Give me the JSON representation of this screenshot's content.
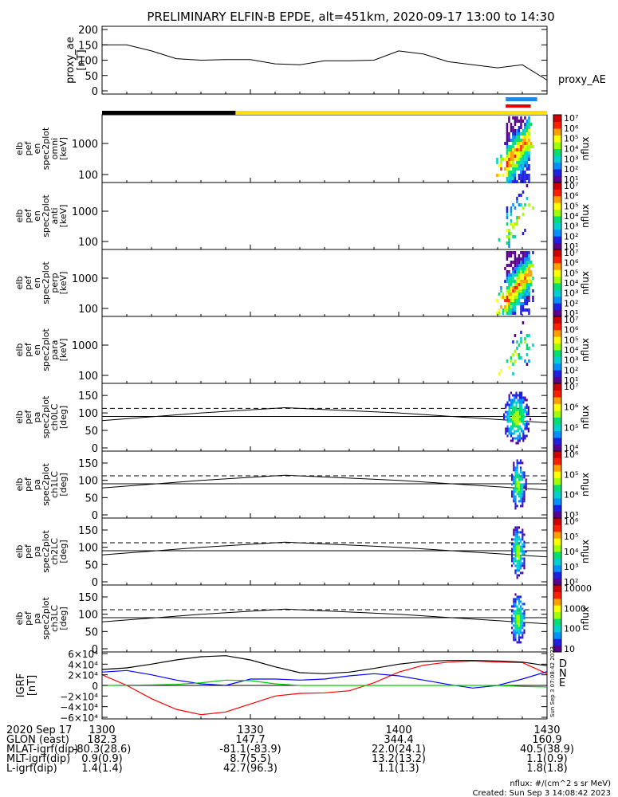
{
  "title": "PRELIMINARY ELFIN-B EPDE, alt=451km, 2020-09-17 13:00 to 14:30",
  "colors": {
    "night_bar": "#000000",
    "day_bar": "#ffe000",
    "science_zone_blue": "#1e88e5",
    "science_zone_red": "#e00000",
    "bx": "#ff0000",
    "by": "#00cc00",
    "bz": "#0000ff",
    "btot": "#000000"
  },
  "colormap": [
    "#5a0090",
    "#2020e0",
    "#0090ff",
    "#00d0d0",
    "#00e070",
    "#a0ff00",
    "#ffff00",
    "#ffa000",
    "#ff2000",
    "#d00000"
  ],
  "panels": {
    "ae": {
      "ylabel": [
        "proxy_ae",
        "[nT]"
      ],
      "yticks": [
        "200",
        "150",
        "100",
        "50",
        "0"
      ],
      "series_label": "proxy_AE"
    },
    "spectra": [
      {
        "ylabel": [
          "elb",
          "pef",
          "en",
          "spec2plot",
          "omni",
          "[keV]"
        ],
        "yticks": [
          "1000",
          "100"
        ],
        "cbar_ticks": [
          "10⁷",
          "10⁶",
          "10⁵",
          "10⁴",
          "10³",
          "10²",
          "10¹"
        ],
        "cbar_label": "nflux"
      },
      {
        "ylabel": [
          "elb",
          "pef",
          "en",
          "spec2plot",
          "anti",
          "[keV]"
        ],
        "yticks": [
          "1000",
          "100"
        ],
        "cbar_ticks": [
          "10⁷",
          "10⁶",
          "10⁵",
          "10⁴",
          "10³",
          "10²",
          "10¹"
        ],
        "cbar_label": "nflux"
      },
      {
        "ylabel": [
          "elb",
          "pef",
          "en",
          "spec2plot",
          "perp",
          "[keV]"
        ],
        "yticks": [
          "1000",
          "100"
        ],
        "cbar_ticks": [
          "10⁷",
          "10⁶",
          "10⁵",
          "10⁴",
          "10³",
          "10²",
          "10¹"
        ],
        "cbar_label": "nflux"
      },
      {
        "ylabel": [
          "elb",
          "pef",
          "en",
          "spec2plot",
          "para",
          "[keV]"
        ],
        "yticks": [
          "1000",
          "100"
        ],
        "cbar_ticks": [
          "10⁷",
          "10⁶",
          "10⁵",
          "10⁴",
          "10³",
          "10²",
          "10¹"
        ],
        "cbar_label": "nflux"
      }
    ],
    "pitch": [
      {
        "ylabel": [
          "elb",
          "pef",
          "pa",
          "spec2plot",
          "ch0LC",
          "[deg]"
        ],
        "yticks": [
          "150",
          "100",
          "50",
          "0"
        ],
        "cbar_ticks": [
          "10⁷",
          "10⁶",
          "10⁵",
          "10⁴"
        ],
        "cbar_label": "nflux"
      },
      {
        "ylabel": [
          "elb",
          "pef",
          "pa",
          "spec2plot",
          "ch1LC",
          "[deg]"
        ],
        "yticks": [
          "150",
          "100",
          "50",
          "0"
        ],
        "cbar_ticks": [
          "10⁶",
          "10⁵",
          "10⁴",
          "10³"
        ],
        "cbar_label": "nflux"
      },
      {
        "ylabel": [
          "elb",
          "pef",
          "pa",
          "spec2plot",
          "ch2LC",
          "[deg]"
        ],
        "yticks": [
          "150",
          "100",
          "50",
          "0"
        ],
        "cbar_ticks": [
          "10⁶",
          "10⁵",
          "10⁴",
          "10³",
          "10²"
        ],
        "cbar_label": "nflux"
      },
      {
        "ylabel": [
          "elb",
          "pef",
          "pa",
          "spec2plot",
          "ch3LC",
          "[deg]"
        ],
        "yticks": [
          "150",
          "100",
          "50",
          "0"
        ],
        "cbar_ticks": [
          "10000",
          "1000",
          "100",
          "10"
        ],
        "cbar_label": "nflux"
      }
    ],
    "igrf": {
      "ylabel": [
        "IGRF",
        "[nT]"
      ],
      "yticks": [
        "6×10⁴",
        "4×10⁴",
        "2×10⁴",
        "0",
        "−2×10⁴",
        "−4×10⁴",
        "−6×10⁴"
      ],
      "components": [
        "D",
        "N",
        "E"
      ],
      "stamp": "Sun Sep  3 07:08:42 2023"
    }
  },
  "ephemeris": {
    "rows": [
      {
        "label": "2020 Sep 17",
        "values": [
          "1300",
          "1330",
          "1400",
          "1430"
        ]
      },
      {
        "label": "GLON (east)",
        "values": [
          "182.3",
          "147.7",
          "344.4",
          "160.9"
        ]
      },
      {
        "label": "MLAT-igrf(dip)",
        "values": [
          "-80.3(28.6)",
          "-81.1(-83.9)",
          "22.0(24.1)",
          "40.5(38.9)"
        ]
      },
      {
        "label": "MLT-igrf(dip)",
        "values": [
          "0.9(0.9)",
          "8.7(5.5)",
          "13.2(13.2)",
          "1.1(0.9)"
        ]
      },
      {
        "label": "L-igrf(dip)",
        "values": [
          "1.4(1.4)",
          "42.7(96.3)",
          "1.1(1.3)",
          "1.8(1.8)"
        ]
      }
    ]
  },
  "footer": {
    "units": "nflux: #/(cm^2 s sr MeV)",
    "created": "Created: Sun Sep  3 14:08:42 2023"
  },
  "chart_data": {
    "type": "line",
    "title": "PRELIMINARY ELFIN-B EPDE, alt=451km, 2020-09-17 13:00 to 14:30",
    "x_ticks": [
      "1300",
      "1330",
      "1400",
      "1430"
    ],
    "xlim_minutes": [
      0,
      90
    ],
    "proxy_ae": {
      "ylim": [
        0,
        200
      ],
      "x_minutes": [
        0,
        5,
        10,
        15,
        20,
        25,
        30,
        35,
        40,
        45,
        50,
        55,
        60,
        65,
        70,
        75,
        80,
        85,
        90
      ],
      "values": [
        150,
        150,
        130,
        105,
        100,
        102,
        102,
        88,
        85,
        98,
        98,
        100,
        130,
        120,
        95,
        85,
        75,
        85,
        35
      ]
    },
    "igrf": {
      "ylim": [
        -60000,
        60000
      ],
      "x_minutes": [
        0,
        5,
        10,
        15,
        20,
        25,
        30,
        35,
        40,
        45,
        50,
        55,
        60,
        65,
        70,
        75,
        80,
        85,
        90
      ],
      "series": [
        {
          "name": "D",
          "values": [
            20000,
            0,
            -25000,
            -45000,
            -55000,
            -50000,
            -35000,
            -20000,
            -15000,
            -14000,
            -10000,
            5000,
            25000,
            38000,
            44000,
            46000,
            44000,
            43000,
            22000
          ]
        },
        {
          "name": "N",
          "values": [
            25000,
            28000,
            20000,
            10000,
            3000,
            0,
            12000,
            12000,
            10000,
            12000,
            18000,
            22000,
            18000,
            10000,
            2000,
            -5000,
            0,
            12000,
            26000
          ]
        },
        {
          "name": "E",
          "values": [
            0,
            500,
            1000,
            2000,
            5000,
            10000,
            9000,
            3000,
            0,
            0,
            0,
            0,
            0,
            0,
            0,
            0,
            0,
            -2000,
            -3000
          ]
        },
        {
          "name": "Btot",
          "values": [
            30000,
            33000,
            40000,
            48000,
            54000,
            56000,
            48000,
            35000,
            24000,
            22000,
            25000,
            32000,
            40000,
            45000,
            47000,
            47000,
            46000,
            44000,
            37000
          ]
        }
      ]
    },
    "pitch_angle_lines": {
      "ylim": [
        0,
        180
      ],
      "dashed_level": 113,
      "solid_level": 90,
      "x_minutes": [
        0,
        20,
        37,
        60,
        90
      ],
      "loss_cone": [
        78,
        100,
        115,
        100,
        72
      ]
    },
    "day_night_bar": {
      "segments": [
        {
          "state": "night",
          "start_min": 0,
          "end_min": 27
        },
        {
          "state": "day",
          "start_min": 27,
          "end_min": 90
        }
      ]
    },
    "science_zone": {
      "start_min": 81,
      "end_min": 88
    },
    "spectrogram_active_interval_min": [
      81,
      87
    ]
  }
}
